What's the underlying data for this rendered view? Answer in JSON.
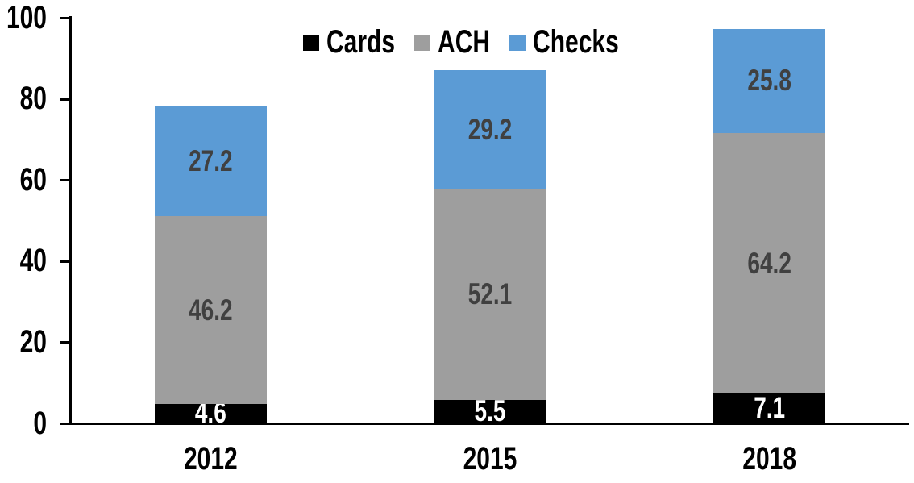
{
  "chart_data": {
    "type": "bar",
    "stacked": true,
    "title": "",
    "xlabel": "",
    "ylabel": "",
    "categories": [
      "2012",
      "2015",
      "2018"
    ],
    "series": [
      {
        "name": "Cards",
        "color": "#000000",
        "label_color": "#FFFFFF",
        "values": [
          4.6,
          5.5,
          7.1
        ]
      },
      {
        "name": "ACH",
        "color": "#9E9E9E",
        "label_color": "#404040",
        "values": [
          46.2,
          52.1,
          64.2
        ]
      },
      {
        "name": "Checks",
        "color": "#5B9BD5",
        "label_color": "#404040",
        "values": [
          27.2,
          29.2,
          25.8
        ]
      }
    ],
    "totals": [
      78.0,
      86.8,
      97.1
    ],
    "ylim": [
      0,
      100
    ],
    "yticks": [
      0,
      20,
      40,
      60,
      80,
      100
    ],
    "grid": false,
    "legend": {
      "position": "top",
      "entries": [
        "Cards",
        "ACH",
        "Checks"
      ]
    },
    "axis_color": "#000000",
    "background": "#FFFFFF"
  }
}
